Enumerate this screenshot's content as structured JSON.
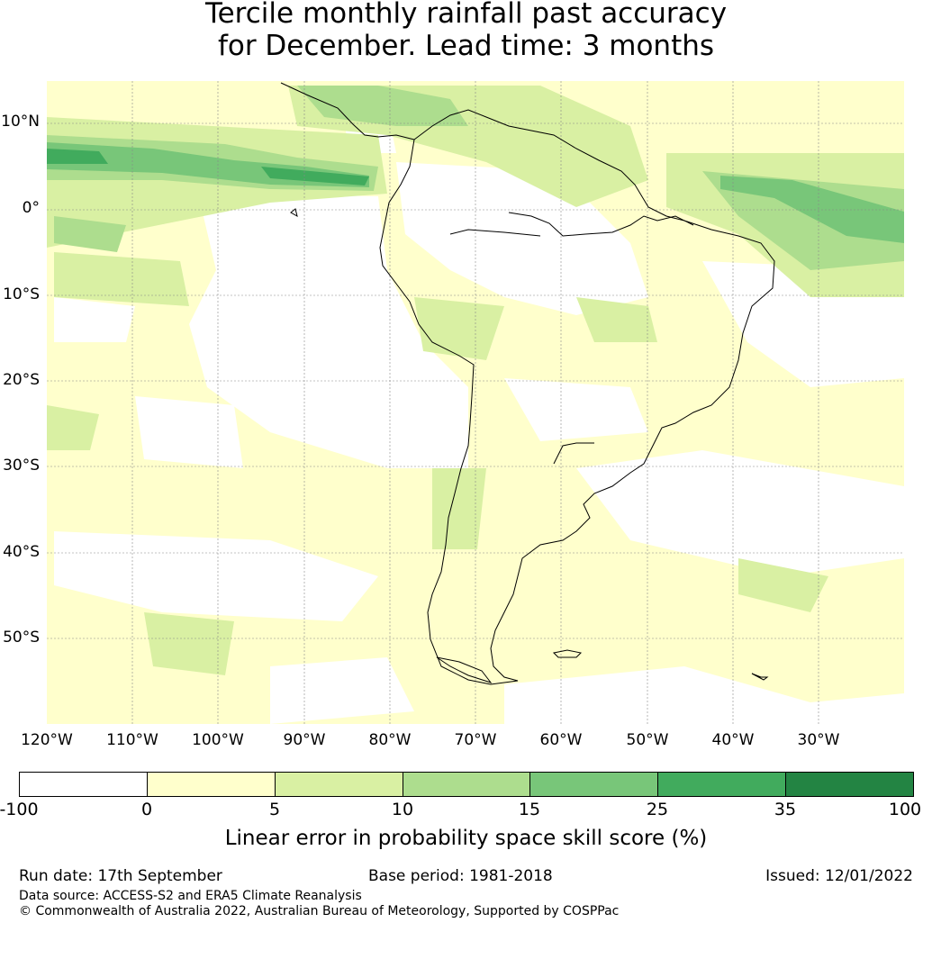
{
  "title": {
    "line1": "Tercile monthly rainfall past accuracy",
    "line2": "for December. Lead time: 3 months"
  },
  "map": {
    "lat_labels": [
      "10°N",
      "0°",
      "10°S",
      "20°S",
      "30°S",
      "40°S",
      "50°S"
    ],
    "lon_labels": [
      "120°W",
      "110°W",
      "100°W",
      "90°W",
      "80°W",
      "70°W",
      "60°W",
      "50°W",
      "40°W",
      "30°W"
    ],
    "extent": {
      "lon_min": -120,
      "lon_max": -20,
      "lat_min": -60,
      "lat_max": 15
    }
  },
  "colorbar": {
    "ticks": [
      "-100",
      "0",
      "5",
      "10",
      "15",
      "25",
      "35",
      "100"
    ],
    "colors": [
      "#ffffff",
      "#ffffcc",
      "#d9f0a3",
      "#addd8e",
      "#78c679",
      "#41ab5d",
      "#238443"
    ],
    "label": "Linear error in probability space skill score (%)"
  },
  "footer": {
    "run_date": "Run date: 17th September",
    "base_period": "Base period: 1981-2018",
    "issued": "Issued: 12/01/2022",
    "data_source": "Data source: ACCESS-S2 and ERA5 Climate Reanalysis",
    "copyright": "© Commonwealth of Australia 2022, Australian Bureau of Meteorology, Supported by COSPPac"
  }
}
